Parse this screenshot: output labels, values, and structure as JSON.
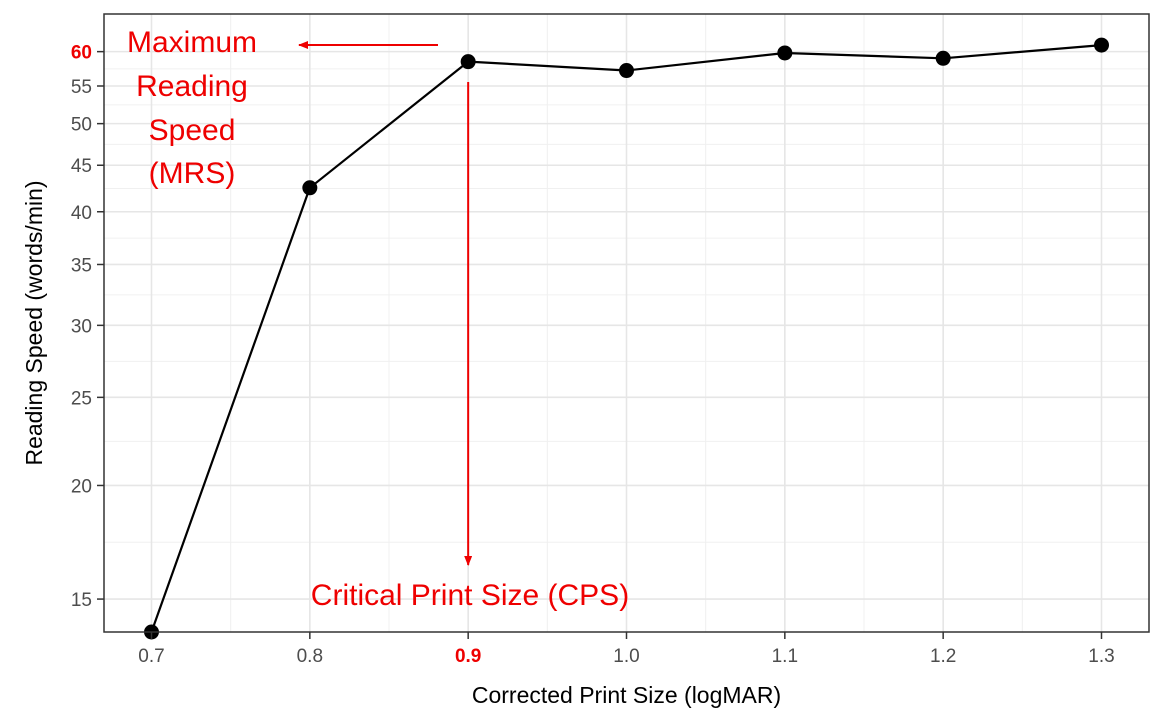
{
  "chart_data": {
    "type": "line",
    "xlabel": "Corrected Print Size (logMAR)",
    "ylabel": "Reading Speed (words/min)",
    "x_scale": "linear",
    "y_scale": "log",
    "xlim": [
      0.67,
      1.33
    ],
    "ylim": [
      13.8,
      66
    ],
    "x_ticks": [
      "0.7",
      "0.8",
      "0.9",
      "1.0",
      "1.1",
      "1.2",
      "1.3"
    ],
    "x_tick_values": [
      0.7,
      0.8,
      0.9,
      1.0,
      1.1,
      1.2,
      1.3
    ],
    "x_tick_highlight": "0.9",
    "y_ticks": [
      "15",
      "20",
      "25",
      "30",
      "35",
      "40",
      "45",
      "50",
      "55",
      "60"
    ],
    "y_tick_values": [
      15,
      20,
      25,
      30,
      35,
      40,
      45,
      50,
      55,
      60
    ],
    "y_tick_highlight": "60",
    "grid": true,
    "series": [
      {
        "x": [
          0.7,
          0.8,
          0.9,
          1.0,
          1.1,
          1.2,
          1.3
        ],
        "y": [
          13.8,
          42.5,
          58.5,
          57.2,
          59.8,
          59.0,
          61.0
        ],
        "color": "#000000"
      }
    ],
    "annotations": [
      {
        "text": "Maximum Reading Speed (MRS)",
        "color": "#ee0000"
      },
      {
        "text": "Critical Print Size (CPS)",
        "color": "#ee0000"
      }
    ]
  },
  "annotation_labels": {
    "mrs_lines": [
      "Maximum",
      "Reading",
      "Speed",
      "(MRS)"
    ],
    "cps": "Critical Print Size (CPS)"
  }
}
